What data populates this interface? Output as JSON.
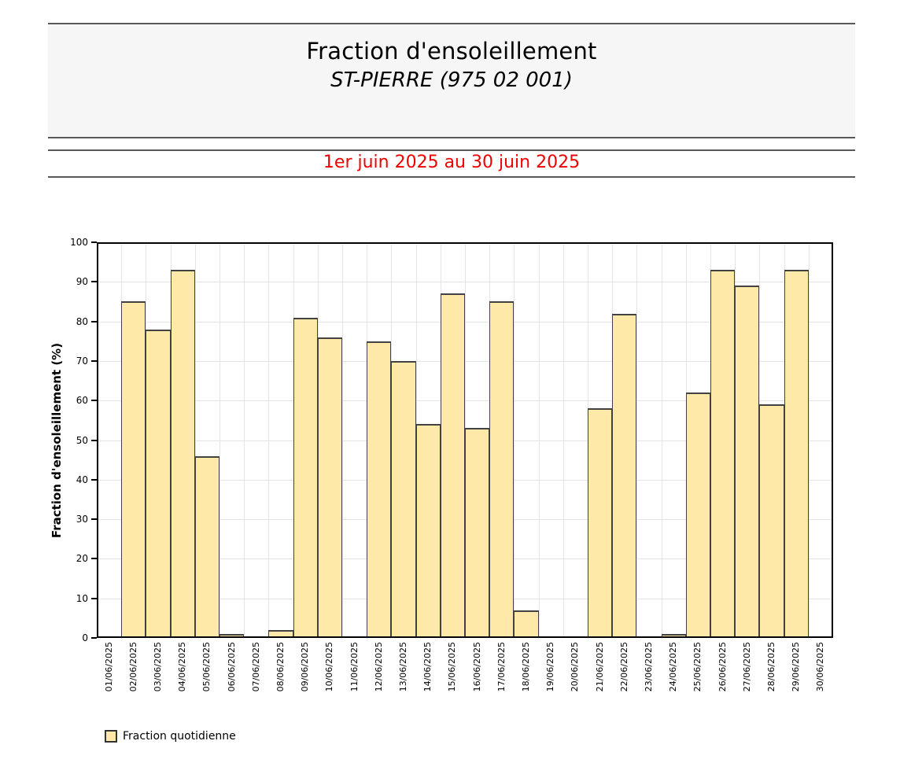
{
  "header": {
    "title": "Fraction d'ensoleillement",
    "subtitle": "ST-PIERRE (975 02 001)",
    "period": "1er juin 2025 au 30 juin 2025"
  },
  "legend": {
    "label": "Fraction quotidienne"
  },
  "colors": {
    "bar_fill": "#ffe9a8",
    "bar_border": "#424242",
    "gridline": "#e4e4e4",
    "axis": "#000000",
    "period_text": "#ee0000",
    "header_band_bg": "#f6f6f6",
    "rule_gray": "#58585a"
  },
  "chart_data": {
    "type": "bar",
    "title": "Fraction d'ensoleillement",
    "subtitle": "ST-PIERRE (975 02 001)",
    "series_name": "Fraction quotidienne",
    "xlabel": "",
    "ylabel": "Fraction d'ensoleillement (%)",
    "ylim": [
      0,
      100
    ],
    "ytick_step": 10,
    "grid": true,
    "legend_position": "bottom-left",
    "categories": [
      "01/06/2025",
      "02/06/2025",
      "03/06/2025",
      "04/06/2025",
      "05/06/2025",
      "06/06/2025",
      "07/06/2025",
      "08/06/2025",
      "09/06/2025",
      "10/06/2025",
      "11/06/2025",
      "12/06/2025",
      "13/06/2025",
      "14/06/2025",
      "15/06/2025",
      "16/06/2025",
      "17/06/2025",
      "18/06/2025",
      "19/06/2025",
      "20/06/2025",
      "21/06/2025",
      "22/06/2025",
      "23/06/2025",
      "24/06/2025",
      "25/06/2025",
      "26/06/2025",
      "27/06/2025",
      "28/06/2025",
      "29/06/2025",
      "30/06/2025"
    ],
    "values": [
      0,
      85,
      78,
      93,
      46,
      1,
      0,
      2,
      81,
      76,
      0,
      75,
      70,
      54,
      87,
      53,
      85,
      7,
      0,
      0,
      58,
      82,
      0,
      1,
      62,
      93,
      89,
      59,
      93,
      0
    ]
  }
}
